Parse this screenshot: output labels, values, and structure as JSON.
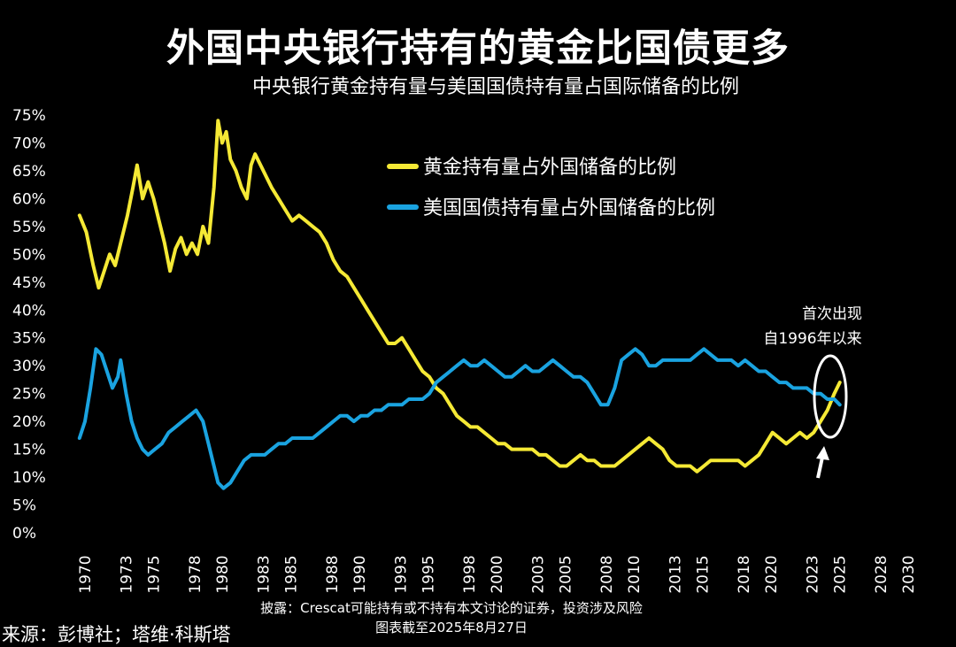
{
  "title": "外国中央银行持有的黄金比国债更多",
  "subtitle": "中央银行黄金持有量与美国国债持有量占国际储备的比例",
  "source": "来源：彭博社；塔维·科斯塔",
  "disclaimer": "披露：Crescat可能持有或不持有本文讨论的证券，投资涉及风险",
  "capture_date": "图表截至2025年8月27日",
  "colors": {
    "gold": "#f5e935",
    "treasury": "#1aa3e0",
    "background": "#000000",
    "text": "#ffffff"
  },
  "chart_data": {
    "type": "line",
    "title": "外国中央银行持有的黄金比国债更多",
    "subtitle": "中央银行黄金持有量与美国国债持有量占国际储备的比例",
    "xlim": [
      1969.5,
      2030
    ],
    "ylim": [
      0,
      75
    ],
    "x_ticks": [
      "1970",
      "1973",
      "1975",
      "1978",
      "1980",
      "1983",
      "1985",
      "1988",
      "1990",
      "1993",
      "1995",
      "1998",
      "2000",
      "2003",
      "2005",
      "2008",
      "2010",
      "2013",
      "2015",
      "2018",
      "2020",
      "2023",
      "2025",
      "2028",
      "2030"
    ],
    "y_ticks": [
      "0%",
      "5%",
      "10%",
      "15%",
      "20%",
      "25%",
      "30%",
      "35%",
      "40%",
      "45%",
      "50%",
      "55%",
      "60%",
      "65%",
      "70%",
      "75%"
    ],
    "legend_position": "top-right",
    "series": [
      {
        "name": "黄金持有量占外国储备的比例",
        "color": "#f5e935",
        "points": [
          [
            1970.0,
            57
          ],
          [
            1970.5,
            54
          ],
          [
            1971.0,
            48
          ],
          [
            1971.4,
            44
          ],
          [
            1971.8,
            47
          ],
          [
            1972.2,
            50
          ],
          [
            1972.6,
            48
          ],
          [
            1973.0,
            52
          ],
          [
            1973.5,
            57
          ],
          [
            1973.9,
            62
          ],
          [
            1974.2,
            66
          ],
          [
            1974.6,
            60
          ],
          [
            1975.0,
            63
          ],
          [
            1975.4,
            60
          ],
          [
            1975.8,
            56
          ],
          [
            1976.2,
            52
          ],
          [
            1976.6,
            47
          ],
          [
            1977.0,
            51
          ],
          [
            1977.4,
            53
          ],
          [
            1977.8,
            50
          ],
          [
            1978.2,
            52
          ],
          [
            1978.6,
            50
          ],
          [
            1979.0,
            55
          ],
          [
            1979.4,
            52
          ],
          [
            1979.8,
            62
          ],
          [
            1980.1,
            74
          ],
          [
            1980.4,
            70
          ],
          [
            1980.7,
            72
          ],
          [
            1981.0,
            67
          ],
          [
            1981.4,
            65
          ],
          [
            1981.8,
            62
          ],
          [
            1982.2,
            60
          ],
          [
            1982.5,
            66
          ],
          [
            1982.8,
            68
          ],
          [
            1983.2,
            66
          ],
          [
            1983.6,
            64
          ],
          [
            1984.0,
            62
          ],
          [
            1984.5,
            60
          ],
          [
            1985.0,
            58
          ],
          [
            1985.5,
            56
          ],
          [
            1986.0,
            57
          ],
          [
            1986.5,
            56
          ],
          [
            1987.0,
            55
          ],
          [
            1987.5,
            54
          ],
          [
            1988.0,
            52
          ],
          [
            1988.5,
            49
          ],
          [
            1989.0,
            47
          ],
          [
            1989.5,
            46
          ],
          [
            1990.0,
            44
          ],
          [
            1990.5,
            42
          ],
          [
            1991.0,
            40
          ],
          [
            1991.5,
            38
          ],
          [
            1992.0,
            36
          ],
          [
            1992.5,
            34
          ],
          [
            1993.0,
            34
          ],
          [
            1993.5,
            35
          ],
          [
            1994.0,
            33
          ],
          [
            1994.5,
            31
          ],
          [
            1995.0,
            29
          ],
          [
            1995.5,
            28
          ],
          [
            1996.0,
            26
          ],
          [
            1996.5,
            25
          ],
          [
            1997.0,
            23
          ],
          [
            1997.5,
            21
          ],
          [
            1998.0,
            20
          ],
          [
            1998.5,
            19
          ],
          [
            1999.0,
            19
          ],
          [
            1999.5,
            18
          ],
          [
            2000.0,
            17
          ],
          [
            2000.5,
            16
          ],
          [
            2001.0,
            16
          ],
          [
            2001.5,
            15
          ],
          [
            2002.0,
            15
          ],
          [
            2002.5,
            15
          ],
          [
            2003.0,
            15
          ],
          [
            2003.5,
            14
          ],
          [
            2004.0,
            14
          ],
          [
            2004.5,
            13
          ],
          [
            2005.0,
            12
          ],
          [
            2005.5,
            12
          ],
          [
            2006.0,
            13
          ],
          [
            2006.5,
            14
          ],
          [
            2007.0,
            13
          ],
          [
            2007.5,
            13
          ],
          [
            2008.0,
            12
          ],
          [
            2008.5,
            12
          ],
          [
            2009.0,
            12
          ],
          [
            2009.5,
            13
          ],
          [
            2010.0,
            14
          ],
          [
            2010.5,
            15
          ],
          [
            2011.0,
            16
          ],
          [
            2011.5,
            17
          ],
          [
            2012.0,
            16
          ],
          [
            2012.5,
            15
          ],
          [
            2013.0,
            13
          ],
          [
            2013.5,
            12
          ],
          [
            2014.0,
            12
          ],
          [
            2014.5,
            12
          ],
          [
            2015.0,
            11
          ],
          [
            2015.5,
            12
          ],
          [
            2016.0,
            13
          ],
          [
            2016.5,
            13
          ],
          [
            2017.0,
            13
          ],
          [
            2017.5,
            13
          ],
          [
            2018.0,
            13
          ],
          [
            2018.5,
            12
          ],
          [
            2019.0,
            13
          ],
          [
            2019.5,
            14
          ],
          [
            2020.0,
            16
          ],
          [
            2020.5,
            18
          ],
          [
            2021.0,
            17
          ],
          [
            2021.5,
            16
          ],
          [
            2022.0,
            17
          ],
          [
            2022.5,
            18
          ],
          [
            2023.0,
            17
          ],
          [
            2023.5,
            18
          ],
          [
            2024.0,
            20
          ],
          [
            2024.5,
            22
          ],
          [
            2025.0,
            25
          ],
          [
            2025.4,
            27
          ]
        ]
      },
      {
        "name": "美国国债持有量占外国储备的比例",
        "color": "#1aa3e0",
        "points": [
          [
            1970.0,
            17
          ],
          [
            1970.4,
            20
          ],
          [
            1970.8,
            26
          ],
          [
            1971.2,
            33
          ],
          [
            1971.6,
            32
          ],
          [
            1972.0,
            29
          ],
          [
            1972.4,
            26
          ],
          [
            1972.8,
            28
          ],
          [
            1973.0,
            31
          ],
          [
            1973.4,
            25
          ],
          [
            1973.8,
            20
          ],
          [
            1974.2,
            17
          ],
          [
            1974.6,
            15
          ],
          [
            1975.0,
            14
          ],
          [
            1975.5,
            15
          ],
          [
            1976.0,
            16
          ],
          [
            1976.5,
            18
          ],
          [
            1977.0,
            19
          ],
          [
            1977.5,
            20
          ],
          [
            1978.0,
            21
          ],
          [
            1978.5,
            22
          ],
          [
            1979.0,
            20
          ],
          [
            1979.4,
            16
          ],
          [
            1979.8,
            12
          ],
          [
            1980.1,
            9
          ],
          [
            1980.5,
            8
          ],
          [
            1981.0,
            9
          ],
          [
            1981.5,
            11
          ],
          [
            1982.0,
            13
          ],
          [
            1982.5,
            14
          ],
          [
            1983.0,
            14
          ],
          [
            1983.5,
            14
          ],
          [
            1984.0,
            15
          ],
          [
            1984.5,
            16
          ],
          [
            1985.0,
            16
          ],
          [
            1985.5,
            17
          ],
          [
            1986.0,
            17
          ],
          [
            1986.5,
            17
          ],
          [
            1987.0,
            17
          ],
          [
            1987.5,
            18
          ],
          [
            1988.0,
            19
          ],
          [
            1988.5,
            20
          ],
          [
            1989.0,
            21
          ],
          [
            1989.5,
            21
          ],
          [
            1990.0,
            20
          ],
          [
            1990.5,
            21
          ],
          [
            1991.0,
            21
          ],
          [
            1991.5,
            22
          ],
          [
            1992.0,
            22
          ],
          [
            1992.5,
            23
          ],
          [
            1993.0,
            23
          ],
          [
            1993.5,
            23
          ],
          [
            1994.0,
            24
          ],
          [
            1994.5,
            24
          ],
          [
            1995.0,
            24
          ],
          [
            1995.5,
            25
          ],
          [
            1996.0,
            27
          ],
          [
            1996.5,
            28
          ],
          [
            1997.0,
            29
          ],
          [
            1997.5,
            30
          ],
          [
            1998.0,
            31
          ],
          [
            1998.5,
            30
          ],
          [
            1999.0,
            30
          ],
          [
            1999.5,
            31
          ],
          [
            2000.0,
            30
          ],
          [
            2000.5,
            29
          ],
          [
            2001.0,
            28
          ],
          [
            2001.5,
            28
          ],
          [
            2002.0,
            29
          ],
          [
            2002.5,
            30
          ],
          [
            2003.0,
            29
          ],
          [
            2003.5,
            29
          ],
          [
            2004.0,
            30
          ],
          [
            2004.5,
            31
          ],
          [
            2005.0,
            30
          ],
          [
            2005.5,
            29
          ],
          [
            2006.0,
            28
          ],
          [
            2006.5,
            28
          ],
          [
            2007.0,
            27
          ],
          [
            2007.5,
            25
          ],
          [
            2008.0,
            23
          ],
          [
            2008.5,
            23
          ],
          [
            2009.0,
            26
          ],
          [
            2009.5,
            31
          ],
          [
            2010.0,
            32
          ],
          [
            2010.5,
            33
          ],
          [
            2011.0,
            32
          ],
          [
            2011.5,
            30
          ],
          [
            2012.0,
            30
          ],
          [
            2012.5,
            31
          ],
          [
            2013.0,
            31
          ],
          [
            2013.5,
            31
          ],
          [
            2014.0,
            31
          ],
          [
            2014.5,
            31
          ],
          [
            2015.0,
            32
          ],
          [
            2015.5,
            33
          ],
          [
            2016.0,
            32
          ],
          [
            2016.5,
            31
          ],
          [
            2017.0,
            31
          ],
          [
            2017.5,
            31
          ],
          [
            2018.0,
            30
          ],
          [
            2018.5,
            31
          ],
          [
            2019.0,
            30
          ],
          [
            2019.5,
            29
          ],
          [
            2020.0,
            29
          ],
          [
            2020.5,
            28
          ],
          [
            2021.0,
            27
          ],
          [
            2021.5,
            27
          ],
          [
            2022.0,
            26
          ],
          [
            2022.5,
            26
          ],
          [
            2023.0,
            26
          ],
          [
            2023.5,
            25
          ],
          [
            2024.0,
            25
          ],
          [
            2024.5,
            24
          ],
          [
            2025.0,
            24
          ],
          [
            2025.4,
            23
          ]
        ]
      }
    ],
    "annotation": {
      "text_line1": "首次出现",
      "text_line2": "自1996年以来"
    }
  }
}
